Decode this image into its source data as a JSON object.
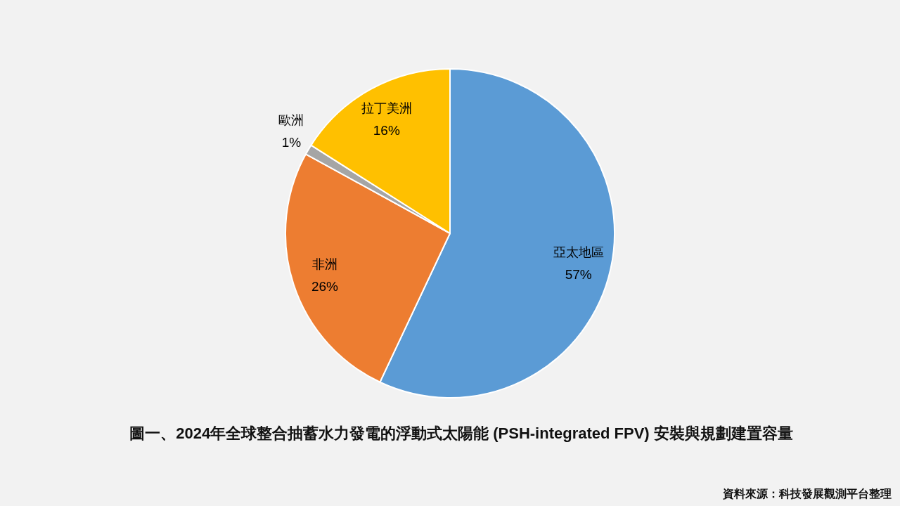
{
  "chart_data": {
    "type": "pie",
    "title": "圖一、2024年全球整合抽蓄水力發電的浮動式太陽能 (PSH-integrated FPV) 安裝與規劃建置容量",
    "categories": [
      "亞太地區",
      "非洲",
      "歐洲",
      "拉丁美洲"
    ],
    "values": [
      57,
      26,
      1,
      16
    ],
    "value_labels": [
      "57%",
      "26%",
      "1%",
      "16%"
    ],
    "colors": [
      "#5b9bd5",
      "#ed7d31",
      "#a5a5a5",
      "#ffc000"
    ],
    "annotations": [
      "資料來源：科技發展觀測平台整理"
    ]
  }
}
